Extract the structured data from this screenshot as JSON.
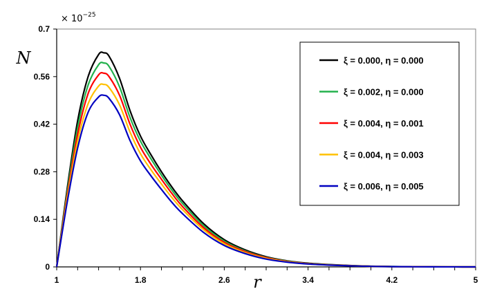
{
  "chart_data": {
    "type": "line",
    "xlabel": "r",
    "ylabel": "N",
    "y_multiplier": "× 10",
    "y_multiplier_exponent": "−25",
    "xlim": [
      1,
      5
    ],
    "ylim": [
      0,
      0.7
    ],
    "x_ticks": [
      "1",
      "1.8",
      "2.6",
      "3.4",
      "4.2",
      "5"
    ],
    "y_ticks": [
      "0",
      "0.14",
      "0.28",
      "0.42",
      "0.56",
      "0.7"
    ],
    "grid": false,
    "legend_position": "top-right",
    "x": [
      1.0,
      1.1,
      1.2,
      1.3,
      1.4,
      1.45,
      1.5,
      1.6,
      1.7,
      1.8,
      1.9,
      2.0,
      2.1,
      2.2,
      2.4,
      2.6,
      2.8,
      3.0,
      3.2,
      3.4,
      3.6,
      3.8,
      4.0,
      4.2,
      4.4,
      4.6,
      4.8,
      5.0
    ],
    "series": [
      {
        "name": "ξ = 0.000,  η = 0.000",
        "color": "#000000",
        "values": [
          0.0,
          0.23,
          0.43,
          0.56,
          0.625,
          0.63,
          0.62,
          0.555,
          0.46,
          0.385,
          0.33,
          0.28,
          0.235,
          0.195,
          0.128,
          0.08,
          0.05,
          0.03,
          0.018,
          0.011,
          0.007,
          0.004,
          0.002,
          0.001,
          0.0006,
          0.0003,
          0.0001,
          0.0
        ]
      },
      {
        "name": "ξ = 0.002,  η = 0.000",
        "color": "#22b14c",
        "values": [
          0.0,
          0.22,
          0.41,
          0.535,
          0.595,
          0.6,
          0.59,
          0.53,
          0.44,
          0.37,
          0.318,
          0.27,
          0.226,
          0.187,
          0.122,
          0.076,
          0.047,
          0.028,
          0.017,
          0.01,
          0.0065,
          0.0037,
          0.0019,
          0.001,
          0.0005,
          0.0002,
          0.0001,
          0.0
        ]
      },
      {
        "name": "ξ = 0.004,  η = 0.001",
        "color": "#ff0000",
        "values": [
          0.0,
          0.21,
          0.39,
          0.51,
          0.565,
          0.57,
          0.56,
          0.505,
          0.42,
          0.352,
          0.302,
          0.258,
          0.216,
          0.178,
          0.116,
          0.072,
          0.045,
          0.027,
          0.016,
          0.0095,
          0.006,
          0.0035,
          0.0018,
          0.0009,
          0.0005,
          0.0002,
          0.0001,
          0.0
        ]
      },
      {
        "name": "ξ = 0.004,   η = 0.003",
        "color": "#ffc000",
        "values": [
          0.0,
          0.2,
          0.37,
          0.48,
          0.532,
          0.537,
          0.528,
          0.477,
          0.397,
          0.333,
          0.286,
          0.244,
          0.204,
          0.169,
          0.11,
          0.068,
          0.042,
          0.025,
          0.015,
          0.009,
          0.0057,
          0.0033,
          0.0017,
          0.0009,
          0.0004,
          0.0002,
          0.0001,
          0.0
        ]
      },
      {
        "name": "ξ = 0.006,   η = 0.005",
        "color": "#0000c0",
        "values": [
          0.0,
          0.19,
          0.35,
          0.455,
          0.5,
          0.505,
          0.496,
          0.448,
          0.372,
          0.312,
          0.268,
          0.228,
          0.19,
          0.157,
          0.102,
          0.063,
          0.039,
          0.023,
          0.014,
          0.0085,
          0.0053,
          0.003,
          0.0016,
          0.0008,
          0.0004,
          0.0002,
          0.0001,
          0.0
        ]
      }
    ]
  }
}
